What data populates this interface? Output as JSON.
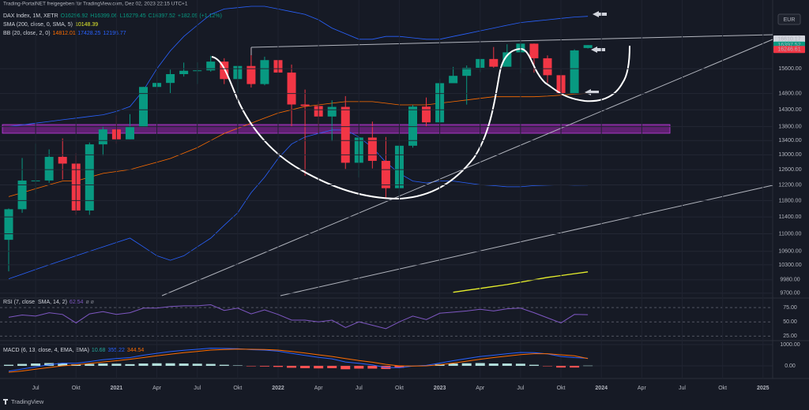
{
  "chart_data": {
    "type": "candlestick",
    "publisher": "Trading-PortalNET freigegeben für TradingView.com, Dez 02, 2023 22:15 UTC+1",
    "symbol": "DAX Index, 1M, XETR",
    "ohlc_legend": [
      "O16296.92",
      "H16399.06",
      "L16279.45",
      "C16397.52",
      "+182.09 (+1.12%)"
    ],
    "sma_legend": [
      "SMA (200, close, 0, SMA, 5)",
      "10148.39"
    ],
    "bb_legend": [
      "BB (20, close, 2, 0)",
      "14812.01",
      "17428.25",
      "12195.77"
    ],
    "currency": "EUR",
    "footer": "TradingView",
    "log": true,
    "grid": true,
    "up_color": "#089981",
    "down_color": "#f23645",
    "categories": [
      null,
      null,
      "Jul",
      null,
      null,
      "Okt",
      null,
      null,
      "2021",
      null,
      null,
      "Apr",
      null,
      null,
      "Jul",
      null,
      null,
      "Okt",
      null,
      null,
      "2022",
      null,
      null,
      "Apr",
      null,
      null,
      "Jul",
      null,
      null,
      "Okt",
      null,
      null,
      "2023",
      null,
      null,
      "Apr",
      null,
      null,
      "Jul",
      null,
      null,
      "Okt",
      null,
      null,
      "2024",
      null,
      null,
      "Apr",
      null,
      null,
      "Jul",
      null,
      null,
      "Okt",
      null,
      null,
      "2025"
    ],
    "open": [
      10861,
      11587,
      12311,
      12313,
      12945,
      12761,
      11556,
      13291,
      13719,
      13433,
      13786,
      15008,
      15136,
      15421,
      15531,
      15544,
      15835,
      15260,
      15688,
      15100,
      15885,
      15471,
      14461,
      14415,
      14098,
      14388,
      12784,
      13484,
      12835,
      12114,
      13253,
      14397,
      13924,
      15128,
      15365,
      15629,
      15922,
      15664,
      16148,
      16447,
      15947,
      15386,
      14810,
      16296.92,
      null,
      null,
      null,
      null,
      null,
      null,
      null,
      null,
      null,
      null,
      null,
      null,
      null
    ],
    "high": [
      11607,
      12913,
      13313,
      13150,
      13460,
      13042,
      13345,
      13819,
      14131,
      14169,
      15008,
      15501,
      15569,
      15802,
      15810,
      16030,
      15948,
      15700,
      16290,
      16000,
      16285,
      15736,
      14925,
      14560,
      14590,
      14720,
      13504,
      13948,
      13500,
      13300,
      14447,
      14676,
      15270,
      15658,
      15706,
      15922,
      16331,
      16427,
      16528,
      16453,
      16043,
      15575,
      16251,
      16399.06,
      null,
      null,
      null,
      null,
      null,
      null,
      null,
      null,
      null,
      null,
      null,
      null,
      null
    ],
    "low": [
      10160,
      11500,
      11980,
      12253,
      12340,
      11450,
      11450,
      12980,
      13310,
      13434,
      13786,
      14850,
      14816,
      15341,
      15100,
      15500,
      15100,
      14818,
      14990,
      15060,
      14970,
      13807,
      12439,
      13600,
      13380,
      12618,
      12390,
      12630,
      11862,
      11869,
      13200,
      13791,
      13900,
      15137,
      14458,
      15482,
      15629,
      15706,
      15455,
      15468,
      15138,
      14630,
      14776,
      16279.45,
      null,
      null,
      null,
      null,
      null,
      null,
      null,
      null,
      null,
      null,
      null,
      null,
      null
    ],
    "close": [
      11587,
      12311,
      12313,
      12945,
      12761,
      11556,
      13291,
      13719,
      13433,
      13786,
      15008,
      15136,
      15421,
      15531,
      15544,
      15835,
      15260,
      15688,
      15100,
      15885,
      15471,
      14461,
      14415,
      14098,
      14388,
      12784,
      13484,
      12835,
      12114,
      13253,
      14397,
      13924,
      15128,
      15365,
      15629,
      15922,
      15664,
      16148,
      16447,
      15947,
      15386,
      14810,
      16215,
      16397.52,
      null,
      null,
      null,
      null,
      null,
      null,
      null,
      null,
      null,
      null,
      null,
      null,
      null
    ],
    "overlays": [
      {
        "name": "BB upper",
        "color": "#2962ff",
        "values": [
          13800,
          13850,
          13900,
          13950,
          14000,
          14050,
          14100,
          14150,
          14250,
          14400,
          14900,
          15600,
          16200,
          16700,
          17100,
          17500,
          17700,
          17750,
          17800,
          17800,
          17700,
          17600,
          17500,
          17300,
          17000,
          16800,
          16600,
          16600,
          16700,
          16700,
          16650,
          16600,
          16600,
          16700,
          16800,
          16900,
          17000,
          17100,
          17200,
          17250,
          17300,
          17350,
          17400,
          17428.25,
          null,
          null,
          null,
          null,
          null,
          null,
          null,
          null,
          null,
          null,
          null,
          null,
          null
        ]
      },
      {
        "name": "BB basis",
        "color": "#ff6d00",
        "values": [
          11900,
          12000,
          12100,
          12200,
          12300,
          12300,
          12400,
          12500,
          12550,
          12600,
          12700,
          12800,
          12900,
          13050,
          13200,
          13400,
          13600,
          13750,
          13900,
          14050,
          14200,
          14300,
          14400,
          14450,
          14500,
          14550,
          14550,
          14550,
          14500,
          14450,
          14450,
          14450,
          14500,
          14550,
          14600,
          14650,
          14700,
          14700,
          14700,
          14700,
          14720,
          14750,
          14780,
          14812.01,
          null,
          null,
          null,
          null,
          null,
          null,
          null,
          null,
          null,
          null,
          null,
          null,
          null
        ]
      },
      {
        "name": "BB lower",
        "color": "#2962ff",
        "values": [
          10000,
          10100,
          10200,
          10300,
          10400,
          10500,
          10600,
          10700,
          10800,
          10900,
          10700,
          10500,
          10400,
          10500,
          10700,
          10900,
          11200,
          11500,
          12000,
          12400,
          12900,
          13300,
          13500,
          13600,
          13700,
          13700,
          13500,
          13200,
          12800,
          12500,
          12300,
          12250,
          12300,
          12300,
          12250,
          12200,
          12180,
          12150,
          12150,
          12180,
          12190,
          12200,
          12190,
          12195.77,
          null,
          null,
          null,
          null,
          null,
          null,
          null,
          null,
          null,
          null,
          null,
          null,
          null
        ]
      },
      {
        "name": "SMA",
        "color": "#e6ee2c",
        "values": [
          null,
          null,
          null,
          null,
          null,
          null,
          null,
          null,
          null,
          null,
          null,
          null,
          null,
          null,
          null,
          null,
          null,
          null,
          null,
          null,
          null,
          null,
          null,
          null,
          null,
          null,
          null,
          null,
          null,
          null,
          null,
          null,
          null,
          9720,
          9760,
          9800,
          9840,
          9880,
          9930,
          9980,
          10030,
          10070,
          10110,
          10148.39,
          null,
          null,
          null,
          null,
          null,
          null,
          null,
          null,
          null,
          null,
          null,
          null,
          null
        ]
      }
    ],
    "ylim": [
      9650,
      17800
    ],
    "yticks": [
      {
        "value": 15600,
        "label": "15600.00"
      },
      {
        "value": 14800,
        "label": "14800.00"
      },
      {
        "value": 14300,
        "label": "14300.00"
      },
      {
        "value": 13800,
        "label": "13800.00"
      },
      {
        "value": 13400,
        "label": "13400.00"
      },
      {
        "value": 13000,
        "label": "13000.00"
      },
      {
        "value": 12600,
        "label": "12600.00"
      },
      {
        "value": 12200,
        "label": "12200.00"
      },
      {
        "value": 11800,
        "label": "11800.00"
      },
      {
        "value": 11400,
        "label": "11400.00"
      },
      {
        "value": 11000,
        "label": "11000.00"
      },
      {
        "value": 10600,
        "label": "10600.00"
      },
      {
        "value": 10300,
        "label": "10300.00"
      },
      {
        "value": 9980,
        "label": "9980.00"
      },
      {
        "value": 9700,
        "label": "9700.00"
      }
    ],
    "price_labels": [
      {
        "value": 16610.17,
        "color": "#d1d4dc"
      },
      {
        "value": 16397.52,
        "color": "#089981"
      },
      {
        "value": 16246.61,
        "color": "#f23645"
      }
    ],
    "rsi": {
      "legend": [
        "RSI (7, close, SMA, 14, 2)",
        "62.54",
        "ø ø"
      ],
      "color": "#7e57c2",
      "values": [
        58,
        62,
        60,
        66,
        63,
        48,
        64,
        68,
        63,
        66,
        74,
        74,
        77,
        78,
        78,
        80,
        70,
        74,
        64,
        71,
        63,
        53,
        53,
        50,
        53,
        40,
        50,
        44,
        38,
        50,
        60,
        54,
        65,
        67,
        69,
        72,
        69,
        73,
        74,
        66,
        57,
        48,
        63,
        62.54,
        null,
        null,
        null,
        null,
        null,
        null,
        null,
        null,
        null,
        null,
        null,
        null,
        null
      ],
      "ylim": [
        17,
        89
      ],
      "yticks": [
        {
          "value": 75,
          "label": "75.00"
        },
        {
          "value": 50,
          "label": "50.00"
        },
        {
          "value": 25,
          "label": "25.00"
        }
      ]
    },
    "macd": {
      "legend": [
        "MACD (6, 13, close, 4, EMA, EMA)",
        "10.68",
        "355.22",
        "344.54"
      ],
      "macd_color": "#2962ff",
      "signal_color": "#ff6d00",
      "up_color": "#b2dfdb",
      "down_color": "#ff5252",
      "histogram": [
        50,
        90,
        110,
        130,
        130,
        70,
        90,
        110,
        100,
        80,
        110,
        120,
        120,
        110,
        100,
        90,
        50,
        20,
        -20,
        -30,
        -50,
        -90,
        -110,
        -120,
        -110,
        -160,
        -130,
        -130,
        -150,
        -90,
        0,
        20,
        80,
        110,
        120,
        130,
        110,
        110,
        100,
        50,
        -10,
        -80,
        -80,
        10.68,
        null,
        null,
        null,
        null,
        null,
        null,
        null,
        null,
        null,
        null,
        null,
        null,
        null
      ],
      "macd": [
        -250,
        -150,
        -50,
        50,
        130,
        120,
        200,
        290,
        340,
        390,
        500,
        590,
        670,
        730,
        780,
        830,
        820,
        810,
        760,
        740,
        690,
        590,
        490,
        400,
        330,
        180,
        120,
        40,
        -80,
        -90,
        -10,
        20,
        130,
        240,
        340,
        440,
        500,
        570,
        630,
        620,
        560,
        440,
        390,
        355.22,
        null,
        null,
        null,
        null,
        null,
        null,
        null,
        null,
        null,
        null,
        null,
        null,
        null
      ],
      "signal": [
        -300,
        -240,
        -160,
        -80,
        0,
        50,
        110,
        180,
        240,
        310,
        390,
        470,
        550,
        620,
        680,
        740,
        770,
        790,
        780,
        770,
        740,
        680,
        600,
        520,
        440,
        340,
        250,
        170,
        70,
        0,
        -10,
        0,
        50,
        130,
        220,
        310,
        390,
        460,
        530,
        570,
        570,
        520,
        470,
        344.54,
        null,
        null,
        null,
        null,
        null,
        null,
        null,
        null,
        null,
        null,
        null,
        null,
        null
      ],
      "ylim": [
        -520,
        1150
      ],
      "yticks": [
        {
          "value": 1000,
          "label": "1000.00"
        },
        {
          "value": 0,
          "label": "0.00"
        }
      ]
    }
  }
}
